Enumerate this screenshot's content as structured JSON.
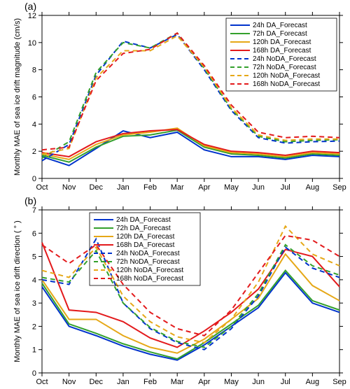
{
  "panel_a": {
    "label": "(a)",
    "type": "line",
    "x_categories": [
      "Oct",
      "Nov",
      "Dec",
      "Jan",
      "Feb",
      "Mar",
      "Apr",
      "May",
      "Jun",
      "Jul",
      "Aug",
      "Sep"
    ],
    "ylim": [
      0,
      12
    ],
    "ytick_step": 2,
    "y_title": "Monthly MAE of sea ice drift magnitude (cm/s)",
    "label_fontsize": 11,
    "panel_label_fontsize": 14,
    "legend_fontsize": 10,
    "tick_fontsize": 11,
    "background_color": "#ffffff",
    "axis_color": "#000000",
    "line_width": 2,
    "legend_position": "top-right",
    "series": [
      {
        "name": "24h DA_Forecast",
        "color": "#0033cc",
        "dash": "solid",
        "values": [
          1.6,
          0.95,
          2.2,
          3.5,
          3.0,
          3.4,
          2.1,
          1.6,
          1.6,
          1.4,
          1.7,
          1.6
        ]
      },
      {
        "name": "72h DA_Forecast",
        "color": "#33a02c",
        "dash": "solid",
        "values": [
          1.7,
          1.2,
          2.3,
          3.1,
          3.2,
          3.55,
          2.3,
          1.8,
          1.7,
          1.5,
          1.8,
          1.7
        ]
      },
      {
        "name": "120h DA_Forecast",
        "color": "#e6a817",
        "dash": "solid",
        "values": [
          1.8,
          1.4,
          2.5,
          3.2,
          3.4,
          3.7,
          2.4,
          1.9,
          1.8,
          1.6,
          1.9,
          1.8
        ]
      },
      {
        "name": "168h DA_Forecast",
        "color": "#e31a1c",
        "dash": "solid",
        "values": [
          1.9,
          1.6,
          2.7,
          3.3,
          3.5,
          3.6,
          2.5,
          2.0,
          1.9,
          1.7,
          2.0,
          1.9
        ]
      },
      {
        "name": "24h NoDA_Forecast",
        "color": "#0033cc",
        "dash": "dash",
        "values": [
          1.3,
          2.5,
          7.6,
          10.1,
          9.6,
          10.6,
          8.0,
          5.0,
          3.0,
          2.6,
          2.7,
          2.75
        ]
      },
      {
        "name": "72h NoDA_Forecast",
        "color": "#33a02c",
        "dash": "dash",
        "values": [
          1.5,
          2.7,
          7.8,
          10.0,
          9.6,
          10.7,
          8.1,
          5.1,
          3.1,
          2.7,
          2.8,
          2.85
        ]
      },
      {
        "name": "120h NoDA_Forecast",
        "color": "#e6a817",
        "dash": "dash",
        "values": [
          1.8,
          2.2,
          7.4,
          9.4,
          9.4,
          10.5,
          8.2,
          5.2,
          3.2,
          2.8,
          2.9,
          2.9
        ]
      },
      {
        "name": "168h NoDA_Forecast",
        "color": "#e31a1c",
        "dash": "dash",
        "values": [
          2.1,
          2.3,
          7.2,
          9.2,
          9.5,
          10.7,
          8.3,
          5.4,
          3.4,
          3.0,
          3.1,
          3.0
        ]
      }
    ]
  },
  "panel_b": {
    "label": "(b)",
    "type": "line",
    "x_categories": [
      "Oct",
      "Nov",
      "Dec",
      "Jan",
      "Feb",
      "Mar",
      "Apr",
      "May",
      "Jun",
      "Jul",
      "Aug",
      "Sep"
    ],
    "ylim": [
      0,
      7
    ],
    "ytick_step": 1,
    "y_title": "Monthly MAE of sea ice drift direction ( ° )",
    "label_fontsize": 11,
    "panel_label_fontsize": 14,
    "legend_fontsize": 10,
    "tick_fontsize": 11,
    "background_color": "#ffffff",
    "axis_color": "#000000",
    "line_width": 2,
    "legend_position": "top-center",
    "series": [
      {
        "name": "24h DA_Forecast",
        "color": "#0033cc",
        "dash": "solid",
        "values": [
          3.7,
          2.0,
          1.6,
          1.15,
          0.8,
          0.55,
          1.2,
          2.0,
          2.8,
          4.3,
          3.0,
          2.6
        ]
      },
      {
        "name": "72h DA_Forecast",
        "color": "#33a02c",
        "dash": "solid",
        "values": [
          3.85,
          2.1,
          1.7,
          1.25,
          0.9,
          0.6,
          1.3,
          2.1,
          2.9,
          4.4,
          3.1,
          2.7
        ]
      },
      {
        "name": "120h DA_Forecast",
        "color": "#e6a817",
        "dash": "solid",
        "values": [
          4.0,
          2.3,
          2.3,
          1.6,
          1.1,
          0.85,
          1.45,
          2.3,
          3.2,
          5.1,
          3.75,
          3.1
        ]
      },
      {
        "name": "168h DA_Forecast",
        "color": "#e31a1c",
        "dash": "solid",
        "values": [
          5.6,
          2.7,
          2.6,
          2.2,
          1.5,
          1.1,
          1.8,
          2.6,
          3.6,
          5.3,
          5.0,
          3.7
        ]
      },
      {
        "name": "24h NoDA_Forecast",
        "color": "#0033cc",
        "dash": "dash",
        "values": [
          4.0,
          3.8,
          5.75,
          3.0,
          1.9,
          1.3,
          1.0,
          1.9,
          3.3,
          5.4,
          4.5,
          4.1
        ]
      },
      {
        "name": "72h NoDA_Forecast",
        "color": "#33a02c",
        "dash": "dash",
        "values": [
          4.1,
          3.9,
          5.25,
          3.0,
          1.95,
          1.35,
          1.1,
          2.0,
          3.4,
          5.5,
          4.6,
          4.2
        ]
      },
      {
        "name": "120h NoDA_Forecast",
        "color": "#e6a817",
        "dash": "dash",
        "values": [
          4.4,
          4.1,
          5.4,
          3.3,
          2.2,
          1.55,
          1.3,
          2.3,
          3.9,
          6.3,
          5.1,
          4.6
        ]
      },
      {
        "name": "168h NoDA_Forecast",
        "color": "#e31a1c",
        "dash": "dash",
        "values": [
          5.5,
          4.7,
          5.5,
          3.8,
          2.6,
          1.9,
          1.6,
          2.7,
          4.3,
          5.9,
          5.7,
          5.0
        ]
      }
    ]
  }
}
